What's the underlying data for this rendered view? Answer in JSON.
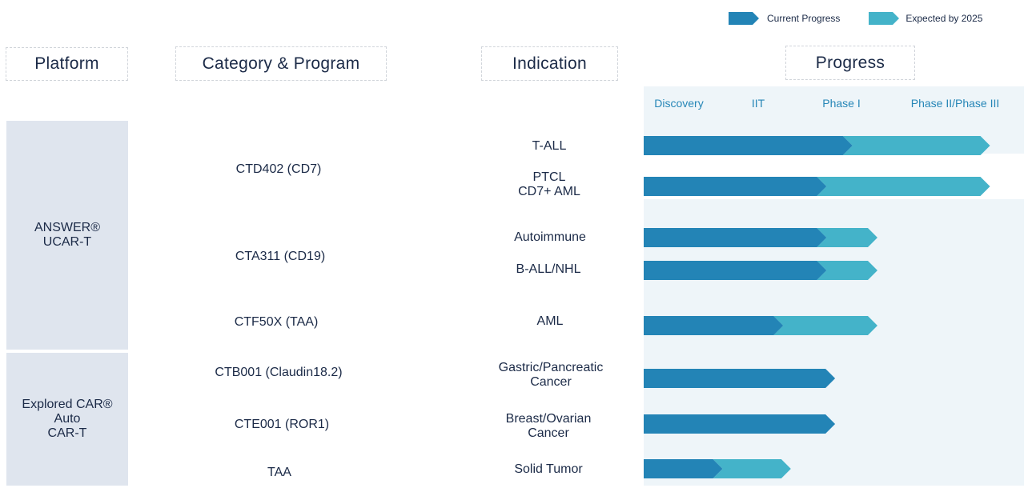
{
  "legend": {
    "current_label": "Current Progress",
    "expected_label": "Expected by 2025"
  },
  "colors": {
    "current": "#2384b6",
    "expected": "#44b3c9",
    "platform_bg": "#dfe5ee",
    "progress_bg": "#eef5f9",
    "stage_text": "#2686b7",
    "text": "#1b2a47"
  },
  "headers": {
    "platform": "Platform",
    "program": "Category & Program",
    "indication": "Indication",
    "progress": "Progress"
  },
  "platforms": [
    {
      "label": "ANSWER®\nUCAR-T"
    },
    {
      "label": "Explored CAR®\nAuto\nCAR-T"
    }
  ],
  "programs": [
    {
      "label": "CTD402 (CD7)"
    },
    {
      "label": "CTA311 (CD19)"
    },
    {
      "label": "CTF50X (TAA)"
    },
    {
      "label": "CTB001 (Claudin18.2)"
    },
    {
      "label": "CTE001 (ROR1)"
    },
    {
      "label": "TAA"
    }
  ],
  "chart_data": {
    "type": "bar",
    "orientation": "horizontal",
    "stages": [
      "Discovery",
      "IIT",
      "Phase I",
      "Phase II/Phase III"
    ],
    "series_names": [
      "Current Progress",
      "Expected by 2025"
    ],
    "rows": [
      {
        "indication": "T-ALL",
        "current": 2.3,
        "expected": 4.0
      },
      {
        "indication": "PTCL\nCD7+ AML",
        "current": 2.0,
        "expected": 4.0
      },
      {
        "indication": "Autoimmune",
        "current": 2.0,
        "expected": 2.7
      },
      {
        "indication": "B-ALL/NHL",
        "current": 2.0,
        "expected": 2.7
      },
      {
        "indication": "AML",
        "current": 1.5,
        "expected": 2.7
      },
      {
        "indication": "Gastric/Pancreatic\nCancer",
        "current": 2.1,
        "expected": 2.1
      },
      {
        "indication": "Breast/Ovarian\nCancer",
        "current": 2.1,
        "expected": 2.1
      },
      {
        "indication": "Solid Tumor",
        "current": 0.8,
        "expected": 1.7
      }
    ],
    "xlim": [
      0,
      4.3
    ]
  }
}
